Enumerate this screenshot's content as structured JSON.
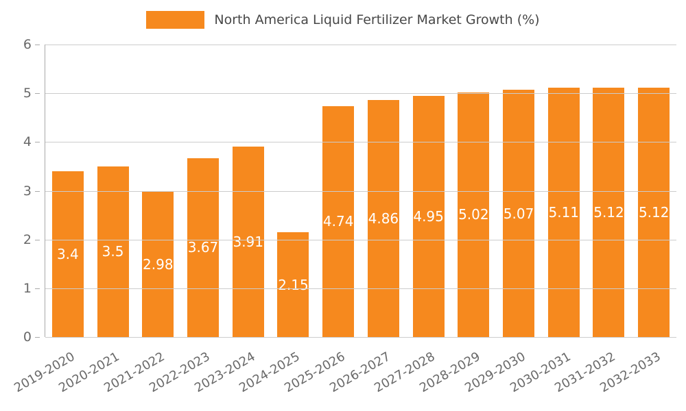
{
  "chart_data": {
    "type": "bar",
    "title": "North America Liquid Fertilizer Market Growth (%)",
    "xlabel": "",
    "ylabel": "",
    "categories": [
      "2019-2020",
      "2020-2021",
      "2021-2022",
      "2022-2023",
      "2023-2024",
      "2024-2025",
      "2025-2026",
      "2026-2027",
      "2027-2028",
      "2028-2029",
      "2029-2030",
      "2030-2031",
      "2031-2032",
      "2032-2033"
    ],
    "values": [
      3.4,
      3.5,
      2.98,
      3.67,
      3.91,
      2.15,
      4.74,
      4.86,
      4.95,
      5.02,
      5.07,
      5.11,
      5.12,
      5.12
    ],
    "value_labels": [
      "3.4",
      "3.5",
      "2.98",
      "3.67",
      "3.91",
      "2.15",
      "4.74",
      "4.86",
      "4.95",
      "5.02",
      "5.07",
      "5.11",
      "5.12",
      "5.12"
    ],
    "ylim": [
      0,
      6
    ],
    "yticks": [
      0,
      1,
      2,
      3,
      4,
      5,
      6
    ],
    "grid": true,
    "legend_position": "top",
    "colors": {
      "bar": "#f6891e",
      "value_label": "#ffffff",
      "gridline": "#cccccc",
      "axis_text": "#696969",
      "title_text": "#474747"
    }
  }
}
